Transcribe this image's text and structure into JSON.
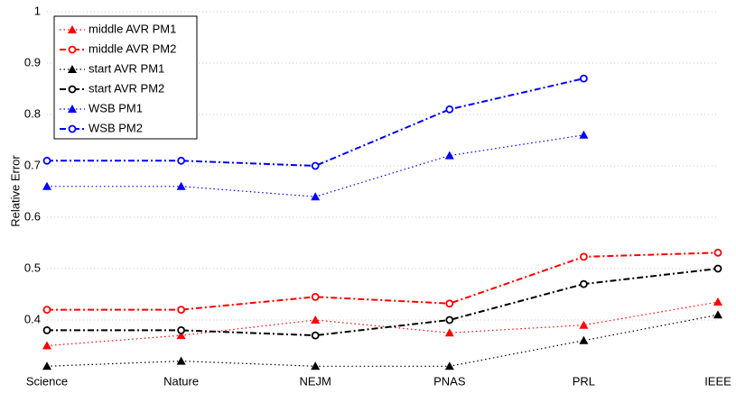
{
  "chart_data": {
    "type": "line",
    "y_label": "Relative Error",
    "categories": [
      "Science",
      "Nature",
      "NEJM",
      "PNAS",
      "PRL",
      "IEEE"
    ],
    "ylim": [
      0.3,
      1
    ],
    "yticks": [
      0.4,
      0.5,
      0.6,
      0.7,
      0.8,
      0.9,
      1
    ],
    "grid": true,
    "legend": "upper left",
    "series": [
      {
        "name": "middle AVR PM1",
        "color": "#ff0000",
        "marker": "triangle",
        "dash": "dotted",
        "values": [
          0.35,
          0.37,
          0.4,
          0.375,
          0.39,
          0.435
        ]
      },
      {
        "name": "middle AVR PM2",
        "color": "#ff0000",
        "marker": "circle",
        "dash": "dashdot",
        "values": [
          0.42,
          0.42,
          0.445,
          0.432,
          0.523,
          0.531
        ]
      },
      {
        "name": "start AVR PM1",
        "color": "#000000",
        "marker": "triangle",
        "dash": "dotted",
        "values": [
          0.31,
          0.32,
          0.31,
          0.31,
          0.36,
          0.41
        ]
      },
      {
        "name": "start AVR PM2",
        "color": "#000000",
        "marker": "circle",
        "dash": "dashdot",
        "values": [
          0.38,
          0.38,
          0.37,
          0.4,
          0.47,
          0.5
        ]
      },
      {
        "name": "WSB PM1",
        "color": "#0000ff",
        "marker": "triangle",
        "dash": "dotted",
        "values": [
          0.66,
          0.66,
          0.64,
          0.72,
          0.76,
          null
        ]
      },
      {
        "name": "WSB PM2",
        "color": "#0000ff",
        "marker": "circle",
        "dash": "dashdot",
        "values": [
          0.71,
          0.71,
          0.7,
          0.81,
          0.87,
          null
        ]
      }
    ]
  }
}
